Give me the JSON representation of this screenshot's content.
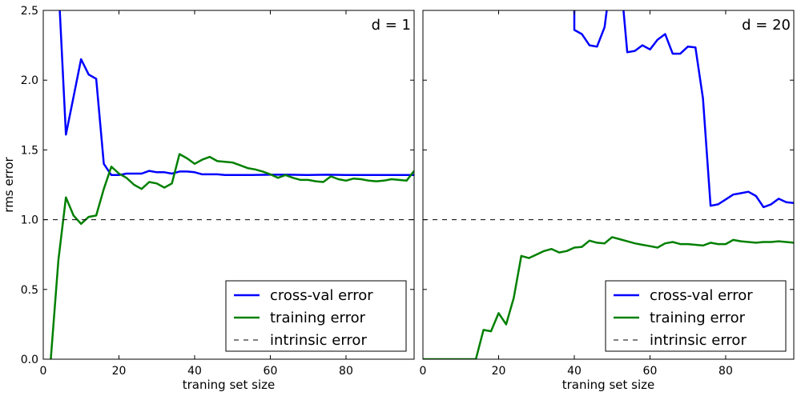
{
  "figure": {
    "ylabel": "rms error"
  },
  "chart_data": [
    {
      "type": "line",
      "title": "d = 1",
      "xlabel": "traning set size",
      "ylabel": "rms error",
      "xlim": [
        0,
        98
      ],
      "ylim": [
        0,
        2.5
      ],
      "xticks": [
        0,
        20,
        40,
        60,
        80
      ],
      "yticks": [
        0.0,
        0.5,
        1.0,
        1.5,
        2.0,
        2.5
      ],
      "ytick_labels": [
        "0.0",
        "0.5",
        "1.0",
        "1.5",
        "2.0",
        "2.5"
      ],
      "legend_position": "lower-right",
      "series": [
        {
          "name": "cross-val error",
          "color": "#0000ff",
          "style": "solid",
          "x": [
            4,
            6,
            8,
            10,
            12,
            14,
            16,
            18,
            20,
            22,
            24,
            26,
            28,
            30,
            32,
            34,
            36,
            38,
            40,
            42,
            44,
            46,
            48,
            50,
            55,
            60,
            65,
            70,
            75,
            80,
            85,
            90,
            95,
            98
          ],
          "y": [
            2.7,
            1.61,
            1.88,
            2.15,
            2.04,
            2.01,
            1.4,
            1.32,
            1.32,
            1.33,
            1.33,
            1.33,
            1.35,
            1.34,
            1.34,
            1.33,
            1.345,
            1.345,
            1.34,
            1.325,
            1.325,
            1.325,
            1.32,
            1.32,
            1.32,
            1.322,
            1.322,
            1.32,
            1.322,
            1.32,
            1.32,
            1.32,
            1.32,
            1.32
          ]
        },
        {
          "name": "training error",
          "color": "#008000",
          "style": "solid",
          "x": [
            2,
            4,
            6,
            8,
            10,
            12,
            14,
            16,
            18,
            20,
            22,
            24,
            26,
            28,
            30,
            32,
            34,
            36,
            38,
            40,
            42,
            44,
            46,
            48,
            50,
            52,
            54,
            56,
            58,
            60,
            62,
            64,
            66,
            68,
            70,
            72,
            74,
            76,
            78,
            80,
            82,
            84,
            86,
            88,
            90,
            92,
            94,
            96,
            98
          ],
          "y": [
            0.0,
            0.71,
            1.16,
            1.03,
            0.97,
            1.02,
            1.03,
            1.22,
            1.38,
            1.33,
            1.3,
            1.25,
            1.22,
            1.27,
            1.26,
            1.23,
            1.26,
            1.47,
            1.44,
            1.4,
            1.43,
            1.45,
            1.42,
            1.415,
            1.41,
            1.39,
            1.37,
            1.36,
            1.345,
            1.325,
            1.3,
            1.32,
            1.3,
            1.285,
            1.285,
            1.275,
            1.27,
            1.31,
            1.29,
            1.28,
            1.295,
            1.29,
            1.28,
            1.275,
            1.28,
            1.29,
            1.285,
            1.28,
            1.35
          ]
        },
        {
          "name": "intrinsic error",
          "color": "#000000",
          "style": "dashed",
          "x": [
            0,
            98
          ],
          "y": [
            1.0,
            1.0
          ]
        }
      ]
    },
    {
      "type": "line",
      "title": "d = 20",
      "xlabel": "traning set size",
      "xlim": [
        0,
        98
      ],
      "ylim": [
        0,
        2.5
      ],
      "xticks": [
        0,
        20,
        40,
        60,
        80
      ],
      "yticks": [
        0.0,
        0.5,
        1.0,
        1.5,
        2.0,
        2.5
      ],
      "legend_position": "lower-right",
      "series": [
        {
          "name": "cross-val error",
          "color": "#0000ff",
          "style": "solid",
          "x": [
            40,
            40,
            42,
            44,
            46,
            48,
            50,
            52,
            54,
            56,
            58,
            60,
            62,
            64,
            66,
            68,
            70,
            72,
            74,
            76,
            78,
            80,
            82,
            84,
            86,
            88,
            90,
            92,
            94,
            96,
            98
          ],
          "y": [
            2.8,
            2.36,
            2.33,
            2.25,
            2.24,
            2.38,
            2.8,
            2.8,
            2.2,
            2.21,
            2.25,
            2.22,
            2.29,
            2.33,
            2.19,
            2.19,
            2.24,
            2.235,
            1.87,
            1.1,
            1.11,
            1.145,
            1.18,
            1.19,
            1.2,
            1.17,
            1.09,
            1.11,
            1.15,
            1.125,
            1.12
          ]
        },
        {
          "name": "training error",
          "color": "#008000",
          "style": "solid",
          "x": [
            0,
            2,
            4,
            6,
            8,
            10,
            12,
            14,
            16,
            18,
            20,
            22,
            24,
            26,
            28,
            30,
            32,
            34,
            36,
            38,
            40,
            42,
            44,
            46,
            48,
            50,
            52,
            54,
            56,
            58,
            60,
            62,
            64,
            66,
            68,
            70,
            72,
            74,
            76,
            78,
            80,
            82,
            84,
            86,
            88,
            90,
            92,
            94,
            96,
            98
          ],
          "y": [
            0.0,
            0.0,
            0.0,
            0.0,
            0.0,
            0.0,
            0.0,
            0.0,
            0.21,
            0.2,
            0.33,
            0.25,
            0.44,
            0.74,
            0.725,
            0.75,
            0.775,
            0.79,
            0.765,
            0.775,
            0.8,
            0.805,
            0.85,
            0.835,
            0.83,
            0.875,
            0.86,
            0.845,
            0.83,
            0.82,
            0.81,
            0.8,
            0.83,
            0.84,
            0.825,
            0.825,
            0.82,
            0.815,
            0.835,
            0.825,
            0.825,
            0.855,
            0.845,
            0.84,
            0.835,
            0.84,
            0.84,
            0.845,
            0.84,
            0.835
          ]
        },
        {
          "name": "intrinsic error",
          "color": "#000000",
          "style": "dashed",
          "x": [
            0,
            98
          ],
          "y": [
            1.0,
            1.0
          ]
        }
      ]
    }
  ]
}
